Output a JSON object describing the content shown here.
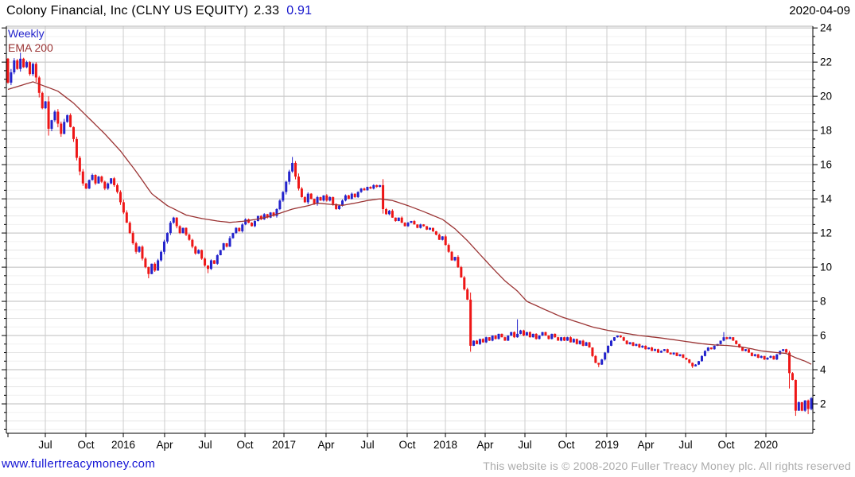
{
  "header": {
    "title": "Colony Financial, Inc (CLNY US EQUITY)",
    "last": "2.33",
    "change": "0.91",
    "date": "2020-04-09"
  },
  "legend": {
    "interval": "Weekly",
    "overlay": "EMA 200"
  },
  "footer": {
    "site_link": "www.fullertreacymoney.com",
    "copyright": "This website is © 2008-2020 Fuller Treacy Money plc. All rights reserved"
  },
  "colors": {
    "up_candle": "#2323cc",
    "down_candle": "#ee1616",
    "ema_line": "#9b3434",
    "grid_major": "#bdbdbd",
    "grid_mid": "#e4e4e4",
    "grid_minor": "#f0f0f0",
    "grid_vertical": "#cccccc",
    "axis": "#000000",
    "frame_top": "#b2b2b2",
    "link_blue": "#1212d4",
    "change_blue": "#1414cc",
    "copyright_gray": "#ababab"
  },
  "chart_data": {
    "type": "candlestick",
    "title": "Colony Financial, Inc (CLNY US EQUITY)",
    "interval_label": "Weekly",
    "overlay_label": "EMA 200",
    "ylim": [
      0.28,
      24.1
    ],
    "y_major_ticks": [
      2,
      4,
      6,
      8,
      10,
      12,
      14,
      16,
      18,
      20,
      22,
      24
    ],
    "y_minor_step": 0.5,
    "x_ticks": [
      {
        "label": "Jul",
        "f": 0.0483
      },
      {
        "label": "Oct",
        "f": 0.0986
      },
      {
        "label": "2016",
        "f": 0.145
      },
      {
        "label": "Apr",
        "f": 0.1962
      },
      {
        "label": "Jul",
        "f": 0.2465
      },
      {
        "label": "Oct",
        "f": 0.2959
      },
      {
        "label": "2017",
        "f": 0.3442
      },
      {
        "label": "Apr",
        "f": 0.3964
      },
      {
        "label": "Jul",
        "f": 0.4477
      },
      {
        "label": "Oct",
        "f": 0.497
      },
      {
        "label": "2018",
        "f": 0.5444
      },
      {
        "label": "Apr",
        "f": 0.5937
      },
      {
        "label": "Jul",
        "f": 0.643
      },
      {
        "label": "Oct",
        "f": 0.6943
      },
      {
        "label": "2019",
        "f": 0.7446
      },
      {
        "label": "Apr",
        "f": 0.7929
      },
      {
        "label": "Jul",
        "f": 0.8422
      },
      {
        "label": "Oct",
        "f": 0.8925
      },
      {
        "label": "2020",
        "f": 0.9418
      }
    ],
    "first_open": 22.2,
    "closes": [
      20.8,
      21.4,
      22.1,
      21.6,
      22.2,
      21.7,
      22.0,
      21.3,
      21.9,
      21.1,
      20.2,
      19.3,
      19.7,
      18.1,
      18.6,
      19.1,
      18.4,
      17.8,
      18.5,
      18.9,
      18.2,
      17.5,
      16.4,
      15.6,
      14.9,
      14.6,
      15.1,
      15.4,
      14.9,
      15.3,
      15.0,
      14.6,
      14.9,
      15.2,
      14.8,
      14.4,
      13.8,
      13.2,
      12.6,
      12.0,
      11.4,
      10.9,
      11.2,
      10.5,
      10.0,
      9.6,
      10.2,
      9.8,
      10.4,
      10.9,
      11.5,
      12.0,
      12.6,
      12.9,
      12.4,
      12.0,
      12.3,
      11.9,
      11.6,
      11.2,
      10.8,
      11.0,
      10.5,
      10.1,
      9.9,
      10.4,
      10.2,
      10.7,
      11.0,
      11.4,
      11.2,
      11.7,
      12.0,
      12.3,
      12.1,
      12.5,
      12.8,
      12.6,
      12.4,
      12.7,
      13.0,
      12.8,
      13.1,
      12.9,
      13.2,
      13.0,
      13.4,
      13.9,
      14.4,
      15.0,
      15.6,
      16.1,
      15.3,
      14.6,
      14.1,
      13.8,
      14.3,
      14.0,
      13.7,
      14.1,
      13.9,
      14.2,
      13.9,
      14.1,
      13.7,
      13.4,
      13.6,
      13.9,
      14.2,
      14.0,
      14.3,
      14.1,
      14.4,
      14.6,
      14.5,
      14.7,
      14.6,
      14.8,
      14.7,
      14.8,
      13.4,
      13.1,
      13.3,
      12.9,
      12.7,
      12.9,
      12.6,
      12.4,
      12.6,
      12.7,
      12.5,
      12.3,
      12.5,
      12.4,
      12.2,
      12.3,
      12.1,
      11.9,
      11.6,
      11.8,
      11.3,
      10.9,
      10.4,
      10.6,
      10.0,
      9.4,
      8.7,
      8.1,
      5.4,
      5.7,
      5.5,
      5.8,
      5.6,
      5.9,
      5.7,
      6.0,
      5.8,
      6.1,
      5.9,
      5.7,
      6.0,
      6.2,
      5.9,
      6.1,
      6.3,
      6.0,
      6.2,
      5.9,
      6.1,
      5.8,
      6.0,
      6.2,
      6.0,
      5.8,
      6.1,
      5.9,
      5.7,
      5.9,
      5.7,
      5.9,
      5.6,
      5.8,
      5.5,
      5.7,
      5.4,
      5.6,
      5.3,
      4.8,
      4.4,
      4.3,
      4.6,
      5.0,
      5.4,
      5.7,
      5.9,
      6.0,
      5.9,
      5.7,
      5.5,
      5.6,
      5.4,
      5.5,
      5.3,
      5.4,
      5.2,
      5.3,
      5.1,
      5.2,
      5.0,
      5.1,
      5.2,
      5.0,
      4.9,
      5.0,
      4.8,
      4.9,
      4.7,
      4.6,
      4.4,
      4.2,
      4.3,
      4.5,
      4.8,
      5.1,
      5.3,
      5.2,
      5.4,
      5.5,
      5.7,
      5.9,
      5.8,
      5.9,
      5.7,
      5.5,
      5.3,
      5.1,
      5.2,
      5.0,
      4.8,
      4.9,
      4.7,
      4.8,
      4.6,
      4.7,
      4.8,
      4.6,
      4.9,
      5.1,
      5.2,
      5.0,
      3.8,
      3.4,
      1.6,
      2.1,
      1.6,
      2.2,
      1.7,
      2.33
    ],
    "extremes": {
      "4": {
        "h": 22.55
      },
      "45": {
        "l": 9.35
      },
      "64": {
        "l": 9.65
      },
      "91": {
        "h": 16.45
      },
      "148": {
        "l": 5.05
      },
      "163": {
        "h": 6.95
      },
      "189": {
        "l": 4.15
      },
      "219": {
        "l": 4.1
      },
      "229": {
        "h": 6.2
      },
      "250": {
        "l": 2.9
      },
      "252": {
        "l": 1.3
      },
      "256": {
        "l": 1.4
      }
    },
    "ema_w": [
      0,
      8,
      16,
      21,
      26,
      31,
      36,
      41,
      46,
      51,
      57,
      62,
      67,
      71,
      76,
      81,
      86,
      91,
      96,
      99,
      103,
      107,
      111,
      115,
      119,
      123,
      128,
      133,
      139,
      143,
      147,
      151,
      155,
      159,
      163,
      166,
      172,
      177,
      182,
      187,
      192,
      197,
      202,
      207,
      212,
      217,
      222,
      226,
      230,
      234,
      238,
      241,
      245,
      249,
      252,
      255,
      257
    ],
    "ema_v": [
      20.4,
      20.85,
      20.3,
      19.6,
      18.7,
      17.8,
      16.8,
      15.6,
      14.3,
      13.6,
      13.05,
      12.85,
      12.7,
      12.62,
      12.7,
      12.85,
      13.1,
      13.4,
      13.6,
      13.75,
      13.68,
      13.62,
      13.75,
      13.9,
      14.0,
      13.9,
      13.6,
      13.25,
      12.8,
      12.25,
      11.55,
      10.75,
      9.95,
      9.2,
      8.6,
      8.0,
      7.5,
      7.1,
      6.8,
      6.5,
      6.3,
      6.15,
      6.0,
      5.9,
      5.78,
      5.65,
      5.52,
      5.45,
      5.42,
      5.35,
      5.22,
      5.1,
      5.02,
      4.95,
      4.7,
      4.5,
      4.32
    ]
  }
}
